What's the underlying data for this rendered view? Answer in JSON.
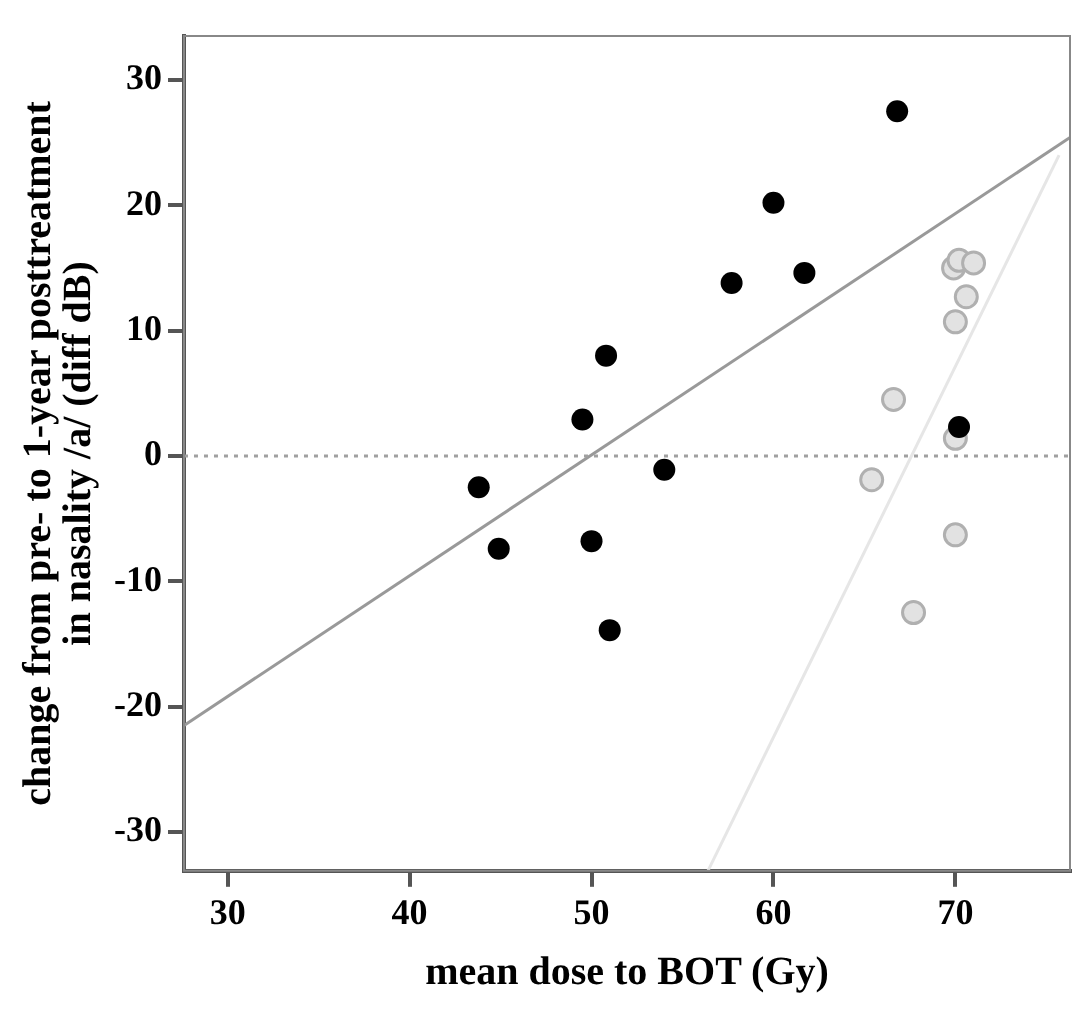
{
  "chart_data": {
    "type": "scatter",
    "xlabel": "mean dose to BOT (Gy)",
    "ylabel": "change from pre- to 1-year posttreatment\nin nasality /a/ (diff dB)",
    "xlim": [
      27.6,
      76.3
    ],
    "ylim": [
      -33.1,
      33.5
    ],
    "xticks": [
      30,
      40,
      50,
      60,
      70
    ],
    "yticks": [
      -30,
      -20,
      -10,
      0,
      10,
      20,
      30
    ],
    "grid": false,
    "legend": false,
    "marker": "circle",
    "ref_lines": [
      {
        "axis": "y",
        "value": 0,
        "color": "#a0a0a0",
        "line_style": "dotted"
      }
    ],
    "series": [
      {
        "type": "line",
        "color": "#999999",
        "x": [
          27.6,
          76.3
        ],
        "values": [
          -21.5,
          25.4
        ],
        "marker": "none"
      },
      {
        "type": "line",
        "color": "#e6e6e6",
        "x": [
          56.4,
          75.7
        ],
        "values": [
          -33.1,
          24.0
        ],
        "marker": "none"
      },
      {
        "type": "scatter",
        "color": "#000000",
        "x": [
          66.8,
          60.0,
          61.7,
          57.7,
          50.8,
          49.5,
          70.2,
          54.0,
          43.8,
          44.9,
          50.0,
          51.0
        ],
        "values": [
          27.5,
          20.2,
          14.6,
          13.8,
          8.0,
          2.9,
          2.3,
          -1.1,
          -2.5,
          -7.4,
          -6.8,
          -13.9
        ]
      },
      {
        "type": "scatter",
        "color": "#b0b0b0",
        "x": [
          69.9,
          70.2,
          71.0,
          70.6,
          70.0,
          66.6,
          70.0,
          65.4,
          70.0,
          67.7
        ],
        "values": [
          15.0,
          15.6,
          15.4,
          12.7,
          10.7,
          4.5,
          1.4,
          -1.9,
          -6.3,
          -12.5
        ]
      }
    ]
  }
}
